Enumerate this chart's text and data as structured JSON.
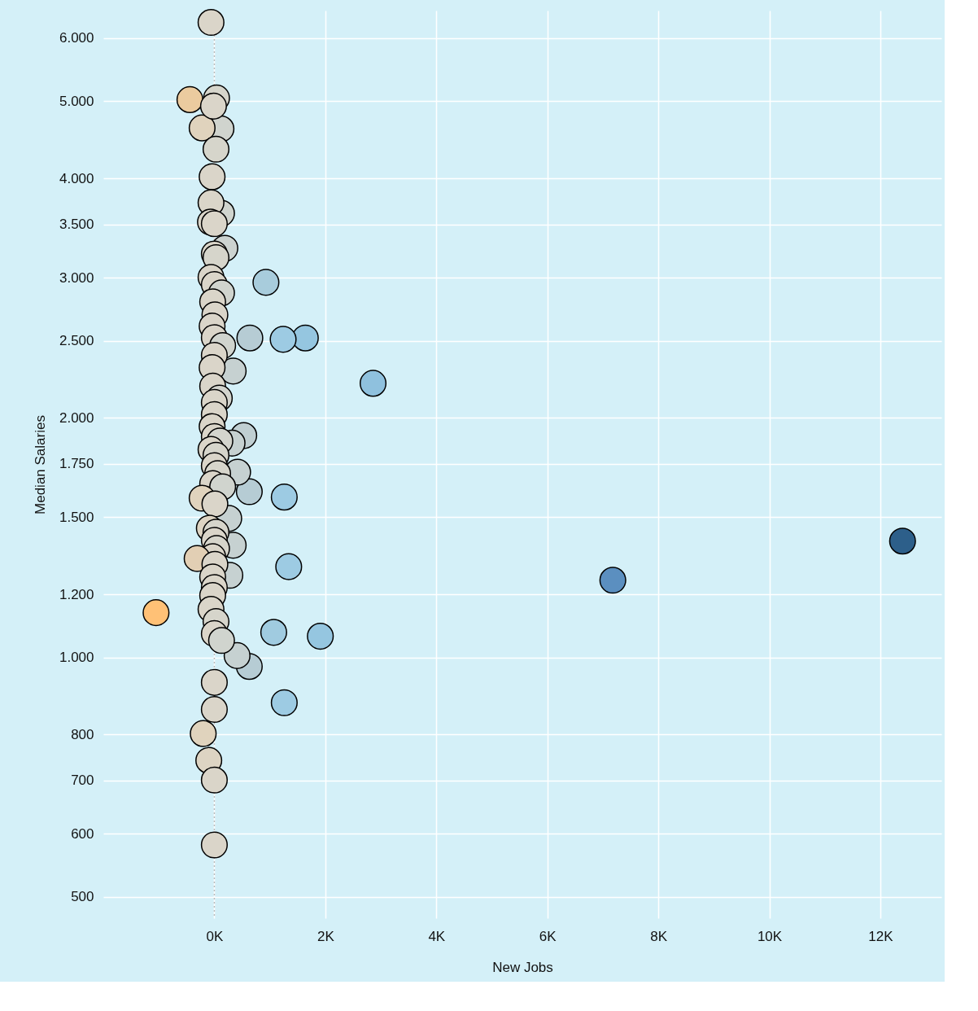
{
  "chart_data": {
    "type": "scatter",
    "xlabel": "New Jobs",
    "ylabel": "Median Salaries",
    "log": "y",
    "grid": true,
    "marker": "circle",
    "xlim": [
      -2000,
      13100
    ],
    "ylim": [
      470,
      6500
    ],
    "xticks": [
      {
        "value": 0,
        "label": "0K"
      },
      {
        "value": 2000,
        "label": "2K"
      },
      {
        "value": 4000,
        "label": "4K"
      },
      {
        "value": 6000,
        "label": "6K"
      },
      {
        "value": 8000,
        "label": "8K"
      },
      {
        "value": 10000,
        "label": "10K"
      },
      {
        "value": 12000,
        "label": "12K"
      }
    ],
    "yticks": [
      500,
      600,
      700,
      800,
      {
        "value": 1000,
        "label": "1.000"
      },
      {
        "value": 1200,
        "label": "1.200"
      },
      {
        "value": 1500,
        "label": "1.500"
      },
      {
        "value": 1750,
        "label": "1.750"
      },
      {
        "value": 2000,
        "label": "2.000"
      },
      {
        "value": 2500,
        "label": "2.500"
      },
      {
        "value": 3000,
        "label": "3.000"
      },
      {
        "value": 3500,
        "label": "3.500"
      },
      {
        "value": 4000,
        "label": "4.000"
      },
      {
        "value": 5000,
        "label": "5.000"
      },
      {
        "value": 6000,
        "label": "6.000"
      }
    ],
    "ref_lines": [
      {
        "axis": "x",
        "value": 0,
        "color": "#bbbbbb",
        "line_style": "dotted"
      }
    ],
    "series": [
      {
        "x": [
          12400,
          7180,
          2860,
          1640,
          1240,
          930,
          640,
          1260,
          1340,
          1070,
          1910,
          1260,
          630,
          410,
          -1050,
          630,
          530,
          340,
          280,
          340,
          260,
          420,
          320,
          190,
          130,
          120,
          40,
          -60,
          -440,
          -220,
          -15,
          30,
          -40,
          -60,
          -70,
          0,
          0,
          30,
          -60,
          0,
          130,
          -30,
          10,
          -40,
          0,
          150,
          0,
          -40,
          -30,
          90,
          0,
          0,
          -40,
          0,
          100,
          -60,
          30,
          0,
          60,
          -30,
          150,
          -220,
          10,
          -90,
          30,
          0,
          40,
          -30,
          -310,
          10,
          -30,
          0,
          -30,
          -60,
          30,
          0,
          130,
          0,
          0,
          -200,
          -100,
          0,
          0
        ],
        "values": [
          1400,
          1250,
          2210,
          2520,
          2510,
          2960,
          2520,
          1590,
          1300,
          1075,
          1063,
          877,
          974,
          1005,
          1138,
          1615,
          1900,
          2290,
          1268,
          1383,
          1495,
          1709,
          1859,
          3267,
          3615,
          4616,
          5047,
          6281,
          5023,
          4628,
          4930,
          4352,
          4018,
          3727,
          3524,
          3508,
          3214,
          3180,
          3003,
          2941,
          2871,
          2798,
          2695,
          2608,
          2523,
          2465,
          2397,
          2313,
          2192,
          2117,
          2091,
          2019,
          1950,
          1895,
          1870,
          1825,
          1795,
          1741,
          1702,
          1653,
          1638,
          1585,
          1559,
          1453,
          1436,
          1403,
          1370,
          1338,
          1331,
          1309,
          1262,
          1224,
          1196,
          1149,
          1109,
          1071,
          1050,
          930,
          860,
          802,
          742,
          701,
          581
        ],
        "colors": [
          "#2d5f8a",
          "#5b8fc0",
          "#8fc1de",
          "#95c6e0",
          "#9dcbe3",
          "#a8ccdc",
          "#b6ccd4",
          "#9dcbe3",
          "#9dcbe3",
          "#a0cbe0",
          "#95c6e0",
          "#9dcbe3",
          "#b6ccd4",
          "#c6d1d1",
          "#ffc176",
          "#b6ccd4",
          "#c0cfd2",
          "#c6d1d1",
          "#c6d1d1",
          "#c6d1d1",
          "#c6d1d1",
          "#c6d1d1",
          "#c6d1d1",
          "#ccd3d0",
          "#d0d4ce",
          "#d0d4ce",
          "#d6d5cb",
          "#dad5c9",
          "#ebcb9f",
          "#e0d3bd",
          "#dad5c9",
          "#d6d5cb",
          "#dad5c9",
          "#dad5c9",
          "#dad5c9",
          "#dad5c9",
          "#dad5c9",
          "#d6d5cb",
          "#dad5c9",
          "#dad5c9",
          "#d0d4ce",
          "#dad5c9",
          "#dad5c9",
          "#dad5c9",
          "#dad5c9",
          "#d0d4ce",
          "#dad5c9",
          "#dad5c9",
          "#dad5c9",
          "#d3d4cd",
          "#dad5c9",
          "#dad5c9",
          "#dad5c9",
          "#dad5c9",
          "#d3d4cd",
          "#dad5c9",
          "#d6d5cb",
          "#dad5c9",
          "#d6d5cb",
          "#dad5c9",
          "#d0d4ce",
          "#e0d3bd",
          "#dad5c9",
          "#ddd4c3",
          "#d6d5cb",
          "#dad5c9",
          "#d6d5cb",
          "#dad5c9",
          "#e2cfb4",
          "#dad5c9",
          "#dad5c9",
          "#dad5c9",
          "#dad5c9",
          "#dad5c9",
          "#d6d5cb",
          "#dad5c9",
          "#d0d4ce",
          "#dad5c9",
          "#dad5c9",
          "#e0d3bd",
          "#ddd4c3",
          "#dad5c9",
          "#dad5c9"
        ]
      }
    ]
  }
}
